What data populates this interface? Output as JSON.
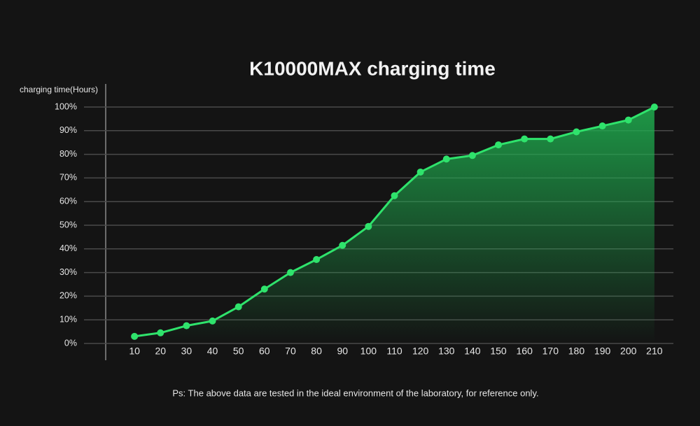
{
  "chart_data": {
    "type": "line",
    "title": "K10000MAX charging time",
    "y_label": "charging time(Hours)",
    "note": "Ps: The above data are tested in the ideal environment of the laboratory, for reference only.",
    "x": [
      10,
      20,
      30,
      40,
      50,
      60,
      70,
      80,
      90,
      100,
      110,
      120,
      130,
      140,
      150,
      160,
      170,
      180,
      190,
      200,
      210
    ],
    "values": [
      3,
      4.5,
      7.5,
      9.5,
      15.5,
      23,
      30,
      35.5,
      41.5,
      49.5,
      62.5,
      72.5,
      78,
      79.5,
      84,
      86.5,
      86.5,
      89.5,
      92,
      94.5,
      100
    ],
    "color": "#2fe36c",
    "xlim": [
      0,
      220
    ],
    "xticks": [
      10,
      20,
      30,
      40,
      50,
      60,
      70,
      80,
      90,
      100,
      110,
      120,
      130,
      140,
      150,
      160,
      170,
      180,
      190,
      200,
      210
    ],
    "ylim": [
      0,
      100
    ],
    "yticks": [
      {
        "value": 0,
        "label": "0%"
      },
      {
        "value": 10,
        "label": "10%"
      },
      {
        "value": 20,
        "label": "20%"
      },
      {
        "value": 30,
        "label": "30%"
      },
      {
        "value": 40,
        "label": "40%"
      },
      {
        "value": 50,
        "label": "50%"
      },
      {
        "value": 60,
        "label": "60%"
      },
      {
        "value": 70,
        "label": "70%"
      },
      {
        "value": 80,
        "label": "80%"
      },
      {
        "value": 90,
        "label": "90%"
      },
      {
        "value": 100,
        "label": "100%"
      }
    ],
    "grid": true
  }
}
